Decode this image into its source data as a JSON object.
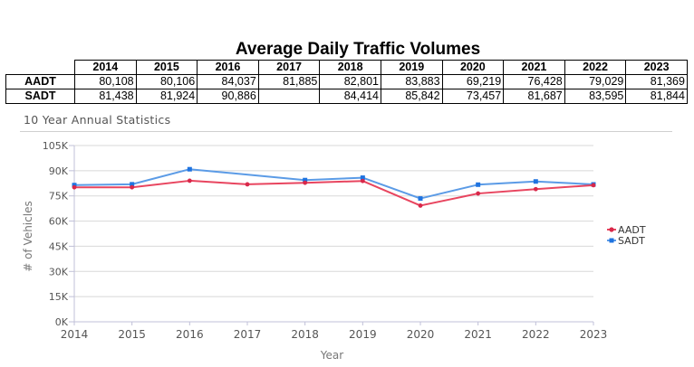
{
  "header": {
    "title": "Average Daily Traffic Volumes"
  },
  "table": {
    "years": [
      "2014",
      "2015",
      "2016",
      "2017",
      "2018",
      "2019",
      "2020",
      "2021",
      "2022",
      "2023"
    ],
    "rows": [
      {
        "label": "AADT",
        "values": [
          "80,108",
          "80,106",
          "84,037",
          "81,885",
          "82,801",
          "83,883",
          "69,219",
          "76,428",
          "79,029",
          "81,369"
        ]
      },
      {
        "label": "SADT",
        "values": [
          "81,438",
          "81,924",
          "90,886",
          "",
          "84,414",
          "85,842",
          "73,457",
          "81,687",
          "83,595",
          "81,844"
        ]
      }
    ]
  },
  "section": {
    "title": "10 Year Annual Statistics"
  },
  "chart_data": {
    "type": "line",
    "x": [
      2014,
      2015,
      2016,
      2017,
      2018,
      2019,
      2020,
      2021,
      2022,
      2023
    ],
    "xlabel": "Year",
    "ylabel": "# of Vehicles",
    "ylim": [
      0,
      105000
    ],
    "yticks": [
      0,
      15000,
      30000,
      45000,
      60000,
      75000,
      90000,
      105000
    ],
    "ytick_labels": [
      "0K",
      "15K",
      "30K",
      "45K",
      "60K",
      "75K",
      "90K",
      "105K"
    ],
    "xtick_labels": [
      "2014",
      "2015",
      "2016",
      "2017",
      "2018",
      "2019",
      "2020",
      "2021",
      "2022",
      "2023"
    ],
    "grid": true,
    "legend_position": "right",
    "series": [
      {
        "name": "AADT",
        "color": "#e8455f",
        "marker": "circle",
        "values": [
          80108,
          80106,
          84037,
          81885,
          82801,
          83883,
          69219,
          76428,
          79029,
          81369
        ]
      },
      {
        "name": "SADT",
        "color": "#5b9be6",
        "marker": "square",
        "values": [
          81438,
          81924,
          90886,
          null,
          84414,
          85842,
          73457,
          81687,
          83595,
          81844
        ]
      }
    ]
  }
}
